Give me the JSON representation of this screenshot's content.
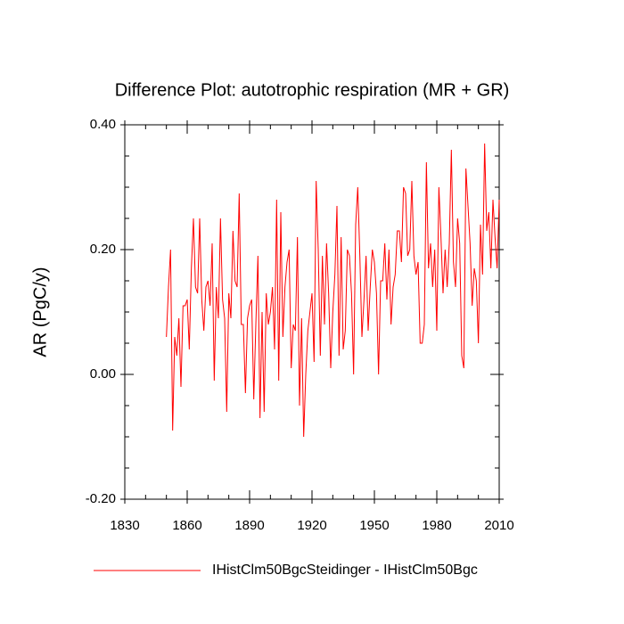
{
  "chart_data": {
    "type": "line",
    "title": "Difference Plot: autotrophic respiration (MR + GR)",
    "y_label": "AR  (PgC/y)",
    "xlim": [
      1830,
      2010
    ],
    "xticks": [
      1830,
      1860,
      1890,
      1920,
      1950,
      1980,
      2010
    ],
    "xminorticks": [
      1840,
      1850,
      1870,
      1880,
      1900,
      1910,
      1930,
      1940,
      1960,
      1970,
      1990,
      2000
    ],
    "ylim": [
      -0.2,
      0.4
    ],
    "yticks": [
      {
        "value": -0.2,
        "label": "-0.20"
      },
      {
        "value": 0,
        "label": "0.00"
      },
      {
        "value": 0.2,
        "label": "0.20"
      },
      {
        "value": 0.4,
        "label": "0.40"
      }
    ],
    "yminorticks": [
      -0.15,
      -0.1,
      -0.05,
      0.05,
      0.1,
      0.15,
      0.25,
      0.3,
      0.35
    ],
    "x": [
      1850,
      1851,
      1852,
      1853,
      1854,
      1855,
      1856,
      1857,
      1858,
      1859,
      1860,
      1861,
      1862,
      1863,
      1864,
      1865,
      1866,
      1867,
      1868,
      1869,
      1870,
      1871,
      1872,
      1873,
      1874,
      1875,
      1876,
      1877,
      1878,
      1879,
      1880,
      1881,
      1882,
      1883,
      1884,
      1885,
      1886,
      1887,
      1888,
      1889,
      1890,
      1891,
      1892,
      1893,
      1894,
      1895,
      1896,
      1897,
      1898,
      1899,
      1900,
      1901,
      1902,
      1903,
      1904,
      1905,
      1906,
      1907,
      1908,
      1909,
      1910,
      1911,
      1912,
      1913,
      1914,
      1915,
      1916,
      1917,
      1918,
      1919,
      1920,
      1921,
      1922,
      1923,
      1924,
      1925,
      1926,
      1927,
      1928,
      1929,
      1930,
      1931,
      1932,
      1933,
      1934,
      1935,
      1936,
      1937,
      1938,
      1939,
      1940,
      1941,
      1942,
      1943,
      1944,
      1945,
      1946,
      1947,
      1948,
      1949,
      1950,
      1951,
      1952,
      1953,
      1954,
      1955,
      1956,
      1957,
      1958,
      1959,
      1960,
      1961,
      1962,
      1963,
      1964,
      1965,
      1966,
      1967,
      1968,
      1969,
      1970,
      1971,
      1972,
      1973,
      1974,
      1975,
      1976,
      1977,
      1978,
      1979,
      1980,
      1981,
      1982,
      1983,
      1984,
      1985,
      1986,
      1987,
      1988,
      1989,
      1990,
      1991,
      1992,
      1993,
      1994,
      1995,
      1996,
      1997,
      1998,
      1999,
      2000,
      2001,
      2002,
      2003,
      2004,
      2005,
      2006,
      2007,
      2008,
      2009,
      2010
    ],
    "series": [
      {
        "name": "IHistClm50BgcSteidinger - IHistClm50Bgc",
        "color": "#ff0000",
        "values": [
          0.06,
          0.14,
          0.2,
          -0.09,
          0.06,
          0.03,
          0.09,
          -0.02,
          0.11,
          0.11,
          0.12,
          0.04,
          0.17,
          0.25,
          0.14,
          0.13,
          0.25,
          0.12,
          0.07,
          0.14,
          0.15,
          0.11,
          0.21,
          -0.01,
          0.14,
          0.09,
          0.25,
          0.12,
          0.09,
          -0.06,
          0.13,
          0.09,
          0.23,
          0.15,
          0.14,
          0.29,
          0.08,
          0.08,
          -0.03,
          0.09,
          0.11,
          0.12,
          -0.04,
          0.08,
          0.19,
          -0.07,
          0.1,
          -0.06,
          0.13,
          0.08,
          0.1,
          0.14,
          0.04,
          0.28,
          -0.01,
          0.26,
          0.06,
          0.14,
          0.18,
          0.2,
          0.01,
          0.08,
          0.07,
          0.22,
          -0.05,
          0.09,
          -0.1,
          0.0,
          0.07,
          0.1,
          0.13,
          0.02,
          0.31,
          0.2,
          0.03,
          0.19,
          0.08,
          0.21,
          0.13,
          0.01,
          0.1,
          0.16,
          0.27,
          0.03,
          0.22,
          0.04,
          0.07,
          0.2,
          0.19,
          0.13,
          0.0,
          0.24,
          0.3,
          0.19,
          0.06,
          0.12,
          0.19,
          0.07,
          0.14,
          0.2,
          0.18,
          0.13,
          0.0,
          0.15,
          0.15,
          0.21,
          0.12,
          0.2,
          0.08,
          0.14,
          0.16,
          0.23,
          0.23,
          0.18,
          0.3,
          0.29,
          0.19,
          0.2,
          0.31,
          0.19,
          0.16,
          0.18,
          0.05,
          0.05,
          0.08,
          0.34,
          0.17,
          0.21,
          0.14,
          0.2,
          0.07,
          0.3,
          0.22,
          0.13,
          0.2,
          0.14,
          0.21,
          0.36,
          0.18,
          0.14,
          0.25,
          0.21,
          0.03,
          0.01,
          0.33,
          0.27,
          0.21,
          0.11,
          0.17,
          0.15,
          0.05,
          0.24,
          0.16,
          0.37,
          0.23,
          0.26,
          0.17,
          0.28,
          0.22,
          0.17,
          0.28
        ]
      }
    ]
  }
}
